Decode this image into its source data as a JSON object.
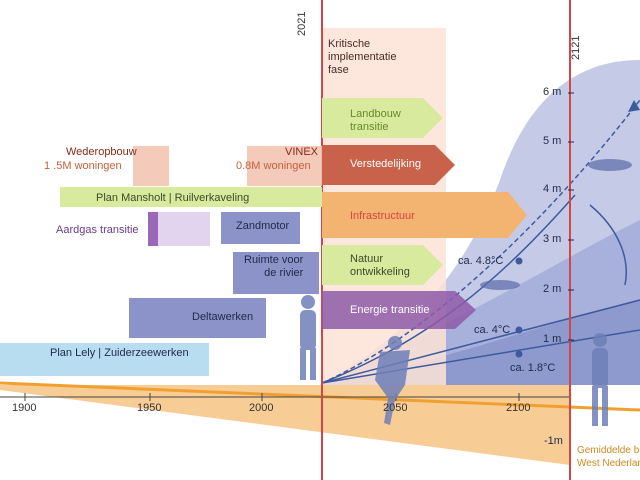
{
  "year_2021": "2021",
  "year_2121": "2121",
  "kritische": "Kritische\nimplementatie\nfase",
  "policies": {
    "wederopbouw_title": "Wederopbouw",
    "wederopbouw_sub": "1 .5M woningen",
    "vinex_title": "VINEX",
    "vinex_sub": "0.8M woningen",
    "mansholt": "Plan Mansholt | Ruilverkaveling",
    "aardgas": "Aardgas transitie",
    "zandmotor": "Zandmotor",
    "ruimte": "Ruimte voor\nde rivier",
    "deltawerken": "Deltawerken",
    "lely": "Plan Lely | Zuiderzeewerken"
  },
  "transitions": {
    "landbouw": "Landbouw\ntransitie",
    "verstedelijking": "Verstedelijking",
    "infrastructuur": "Infrastructuur",
    "natuur": "Natuur\nontwikkeling",
    "energie": "Energie transitie"
  },
  "scenarios": {
    "s48": "ca. 4.8°C",
    "s4": "ca. 4°C",
    "s18": "ca. 1.8°C"
  },
  "sea_axis": [
    "6 m",
    "5 m",
    "4 m",
    "3 m",
    "2 m",
    "1 m",
    "-1m"
  ],
  "time_axis": [
    "1900",
    "1950",
    "2000",
    "2050",
    "2100"
  ],
  "legend_line1": "Gemiddelde b",
  "legend_line2": "West Nederlan",
  "colors": {
    "red_line": "#d64545",
    "orange": "#f0a030",
    "blue": "#3d5a9e",
    "wave": "#8f9dce"
  }
}
